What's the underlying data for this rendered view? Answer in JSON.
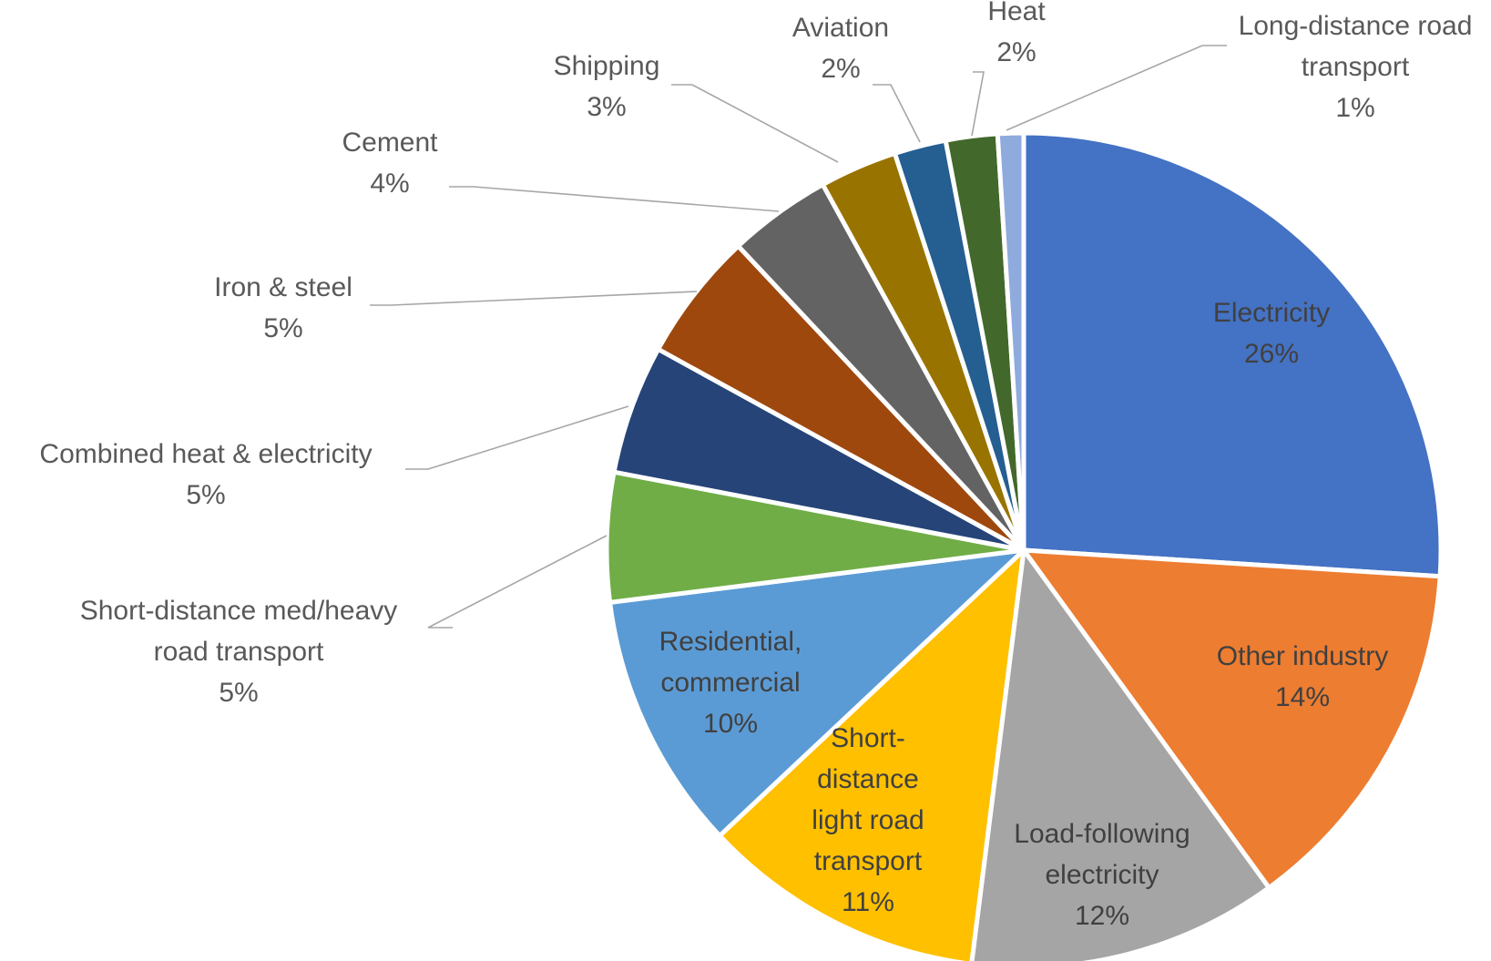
{
  "chart_data": {
    "type": "pie",
    "title": "",
    "start_angle_deg": 0,
    "direction": "clockwise",
    "slices": [
      {
        "label_lines": [
          "Electricity"
        ],
        "pct_label": "26%",
        "value": 26,
        "color": "#4472c4",
        "label_color": "#404040"
      },
      {
        "label_lines": [
          "Other industry"
        ],
        "pct_label": "14%",
        "value": 14,
        "color": "#ed7d31",
        "label_color": "#404040"
      },
      {
        "label_lines": [
          "Load-following",
          "electricity"
        ],
        "pct_label": "12%",
        "value": 12,
        "color": "#a5a5a5",
        "label_color": "#404040"
      },
      {
        "label_lines": [
          "Short-",
          "distance",
          "light road",
          "transport"
        ],
        "pct_label": "11%",
        "value": 11,
        "color": "#ffc000",
        "label_color": "#404040"
      },
      {
        "label_lines": [
          "Residential,",
          "commercial"
        ],
        "pct_label": "10%",
        "value": 10,
        "color": "#5b9bd5",
        "label_color": "#404040"
      },
      {
        "label_lines": [
          "Short-distance med/heavy",
          "road transport"
        ],
        "pct_label": "5%",
        "value": 5,
        "color": "#70ad47",
        "label_color": "#595959"
      },
      {
        "label_lines": [
          "Combined heat & electricity"
        ],
        "pct_label": "5%",
        "value": 5,
        "color": "#264478",
        "label_color": "#595959"
      },
      {
        "label_lines": [
          "Iron & steel"
        ],
        "pct_label": "5%",
        "value": 5,
        "color": "#9e480e",
        "label_color": "#595959"
      },
      {
        "label_lines": [
          "Cement"
        ],
        "pct_label": "4%",
        "value": 4,
        "color": "#636363",
        "label_color": "#595959"
      },
      {
        "label_lines": [
          "Shipping"
        ],
        "pct_label": "3%",
        "value": 3,
        "color": "#997300",
        "label_color": "#595959"
      },
      {
        "label_lines": [
          "Aviation"
        ],
        "pct_label": "2%",
        "value": 2,
        "color": "#255e91",
        "label_color": "#595959"
      },
      {
        "label_lines": [
          "Heat"
        ],
        "pct_label": "2%",
        "value": 2,
        "color": "#43682b",
        "label_color": "#595959"
      },
      {
        "label_lines": [
          "Long-distance road",
          "transport"
        ],
        "pct_label": "1%",
        "value": 1,
        "color": "#8faadc",
        "label_color": "#595959"
      }
    ]
  }
}
